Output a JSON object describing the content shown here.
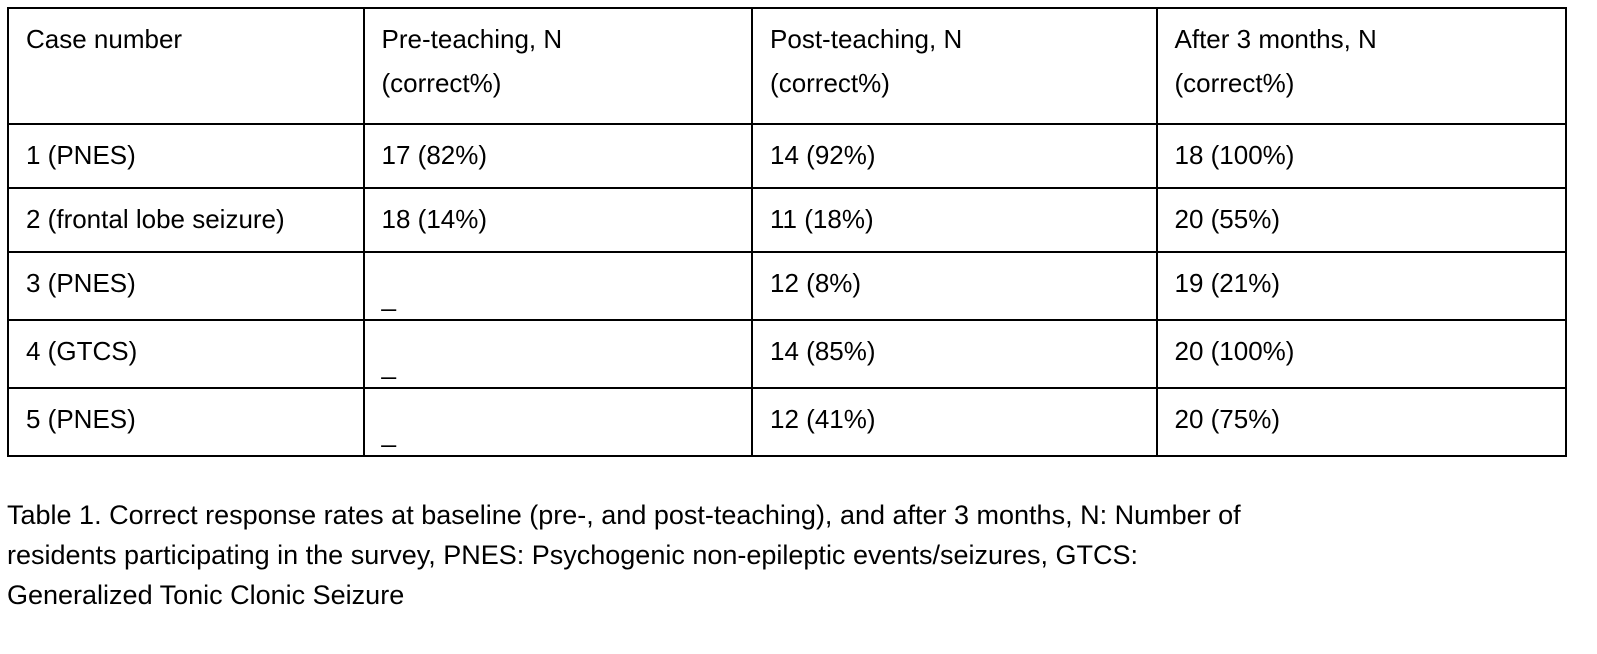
{
  "table": {
    "headers": [
      {
        "line1": "Case number",
        "line2": ""
      },
      {
        "line1": "Pre-teaching, N",
        "line2": "(correct%)"
      },
      {
        "line1": "Post-teaching, N",
        "line2": "(correct%)"
      },
      {
        "line1": "After 3 months, N",
        "line2": "(correct%)"
      }
    ],
    "rows": [
      [
        "1 (PNES)",
        "17 (82%)",
        "14 (92%)",
        "18 (100%)"
      ],
      [
        "2 (frontal lobe seizure)",
        "18 (14%)",
        "11 (18%)",
        "20 (55%)"
      ],
      [
        "3 (PNES)",
        "_",
        "12 (8%)",
        "19 (21%)"
      ],
      [
        "4 (GTCS)",
        "_",
        "14 (85%)",
        "20 (100%)"
      ],
      [
        "5 (PNES)",
        "_",
        "12 (41%)",
        "20 (75%)"
      ]
    ]
  },
  "caption": {
    "lines": [
      "Table 1. Correct response rates at baseline (pre-, and post-teaching), and after 3 months, N: Number of",
      "residents participating in the survey, PNES: Psychogenic non-epileptic events/seizures, GTCS:",
      "Generalized Tonic Clonic Seizure"
    ]
  }
}
